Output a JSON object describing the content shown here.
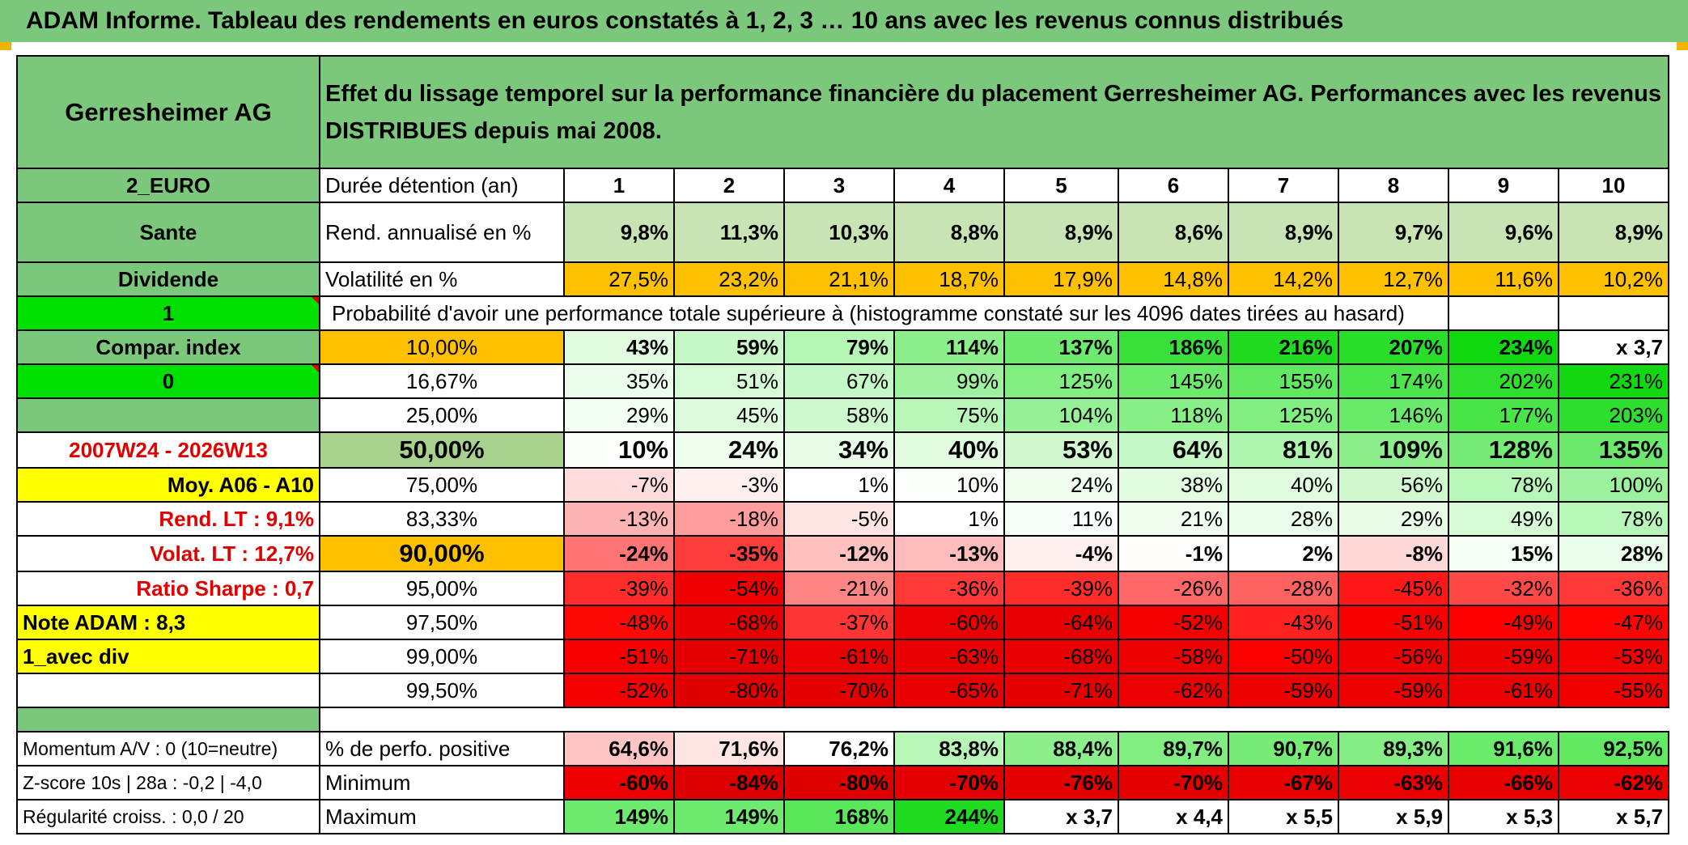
{
  "title": "ADAM Informe. Tableau des rendements en euros constatés à 1, 2, 3 … 10 ans avec les revenus connus distribués",
  "header": {
    "name": "Gerresheimer AG",
    "description": "Effet du lissage temporel sur la performance financière du placement Gerresheimer AG. Performances avec les revenus DISTRIBUES depuis mai 2008."
  },
  "left_column": {
    "currency": "2_EURO",
    "sector": "Sante",
    "dividend": "Dividende",
    "flag1": "1",
    "compar_index": "Compar. index",
    "flag0": "0",
    "period": "2007W24 - 2026W13",
    "moy": "Moy. A06 - A10",
    "rend_lt": "Rend. LT :   9,1%",
    "volat_lt": "Volat. LT :   12,7%",
    "sharpe": "Ratio Sharpe :    0,7",
    "note": "Note ADAM : 8,3",
    "avec_div": "1_avec div"
  },
  "rows": {
    "duration_label": "Durée détention (an)",
    "years": [
      "1",
      "2",
      "3",
      "4",
      "5",
      "6",
      "7",
      "8",
      "9",
      "10"
    ],
    "rend_label": "Rend. annualisé en %",
    "rend": [
      "9,8%",
      "11,3%",
      "10,3%",
      "8,8%",
      "8,9%",
      "8,6%",
      "8,9%",
      "9,7%",
      "9,6%",
      "8,9%"
    ],
    "vol_label": "Volatilité en %",
    "vol": [
      "27,5%",
      "23,2%",
      "21,1%",
      "18,7%",
      "17,9%",
      "14,8%",
      "14,2%",
      "12,7%",
      "11,6%",
      "10,2%"
    ],
    "prob_label": "Probabilité d'avoir une performance totale supérieure à (histogramme constaté sur les 4096 dates tirées au hasard)"
  },
  "quantiles": [
    {
      "label": "10,00%",
      "values": [
        "43%",
        "59%",
        "79%",
        "114%",
        "137%",
        "186%",
        "216%",
        "207%",
        "234%",
        "x 3,7"
      ],
      "colors": [
        "#e0fbe0",
        "#c8f8c8",
        "#b4f6b4",
        "#8cef8c",
        "#6eeb6e",
        "#3ae03a",
        "#20dc20",
        "#28de28",
        "#0fd80f",
        "#ffffff"
      ]
    },
    {
      "label": "16,67%",
      "values": [
        "35%",
        "51%",
        "67%",
        "99%",
        "125%",
        "145%",
        "155%",
        "174%",
        "202%",
        "231%"
      ],
      "colors": [
        "#ecfdec",
        "#d6fad6",
        "#c4f8c4",
        "#9ef29e",
        "#80ee80",
        "#6cea6c",
        "#62e962",
        "#4ce54c",
        "#2edf2e",
        "#12d812"
      ]
    },
    {
      "label": "25,00%",
      "values": [
        "29%",
        "45%",
        "58%",
        "75%",
        "104%",
        "118%",
        "125%",
        "146%",
        "177%",
        "203%"
      ],
      "colors": [
        "#f2fef2",
        "#dcfbdc",
        "#cef9ce",
        "#b8f6b8",
        "#96f196",
        "#88ef88",
        "#80ee80",
        "#6aea6a",
        "#48e448",
        "#2ede2e"
      ]
    },
    {
      "label": "50,00%",
      "values": [
        "10%",
        "24%",
        "34%",
        "40%",
        "53%",
        "64%",
        "81%",
        "109%",
        "128%",
        "135%"
      ],
      "colors": [
        "#fbfffb",
        "#f0fef0",
        "#e8fce8",
        "#e0fbe0",
        "#d0f9d0",
        "#c4f8c4",
        "#aef5ae",
        "#8cef8c",
        "#76ec76",
        "#6ce96c"
      ]
    },
    {
      "label": "75,00%",
      "values": [
        "-7%",
        "-3%",
        "1%",
        "10%",
        "24%",
        "38%",
        "40%",
        "56%",
        "78%",
        "100%"
      ],
      "colors": [
        "#ffdcdc",
        "#fff0f0",
        "#ffffff",
        "#fbfffb",
        "#f0fef0",
        "#e2fce2",
        "#e0fbe0",
        "#d0f9d0",
        "#b6f6b6",
        "#9cf29c"
      ]
    },
    {
      "label": "83,33%",
      "values": [
        "-13%",
        "-18%",
        "-5%",
        "1%",
        "11%",
        "21%",
        "28%",
        "29%",
        "49%",
        "78%"
      ],
      "colors": [
        "#ffb4b4",
        "#ff9c9c",
        "#ffe4e4",
        "#ffffff",
        "#f8fff8",
        "#f0fef0",
        "#eafdea",
        "#e8fce8",
        "#d6fad6",
        "#b6f6b6"
      ]
    },
    {
      "label": "90,00%",
      "values": [
        "-24%",
        "-35%",
        "-12%",
        "-13%",
        "-4%",
        "-1%",
        "2%",
        "-8%",
        "15%",
        "28%"
      ],
      "colors": [
        "#ff7474",
        "#ff3c3c",
        "#ffc0c0",
        "#ffbcbc",
        "#fff0f0",
        "#fffcfc",
        "#ffffff",
        "#ffd8d8",
        "#f4fef4",
        "#eafdea"
      ]
    },
    {
      "label": "95,00%",
      "values": [
        "-39%",
        "-54%",
        "-21%",
        "-36%",
        "-39%",
        "-26%",
        "-28%",
        "-45%",
        "-32%",
        "-36%"
      ],
      "colors": [
        "#ff2c2c",
        "#f00000",
        "#ff8484",
        "#ff3838",
        "#ff2c2c",
        "#ff6868",
        "#ff6060",
        "#ff1818",
        "#ff4848",
        "#ff3838"
      ]
    },
    {
      "label": "97,50%",
      "values": [
        "-48%",
        "-68%",
        "-37%",
        "-60%",
        "-64%",
        "-52%",
        "-43%",
        "-51%",
        "-49%",
        "-47%"
      ],
      "colors": [
        "#ff0808",
        "#e80000",
        "#ff3434",
        "#ea0000",
        "#e80000",
        "#f40000",
        "#ff2020",
        "#f80000",
        "#fc0000",
        "#ff0404"
      ]
    },
    {
      "label": "99,00%",
      "values": [
        "-51%",
        "-71%",
        "-61%",
        "-63%",
        "-68%",
        "-58%",
        "-50%",
        "-56%",
        "-59%",
        "-53%"
      ],
      "colors": [
        "#f80000",
        "#e40000",
        "#ea0000",
        "#e80000",
        "#e80000",
        "#ee0000",
        "#fa0000",
        "#f00000",
        "#ec0000",
        "#f40000"
      ]
    },
    {
      "label": "99,50%",
      "values": [
        "-52%",
        "-80%",
        "-70%",
        "-65%",
        "-71%",
        "-62%",
        "-59%",
        "-59%",
        "-61%",
        "-55%"
      ],
      "colors": [
        "#f40000",
        "#e00000",
        "#e40000",
        "#e80000",
        "#e40000",
        "#ea0000",
        "#ec0000",
        "#ec0000",
        "#ea0000",
        "#f20000"
      ]
    }
  ],
  "bottom": {
    "momentum": "Momentum A/V : 0 (10=neutre)",
    "zscore": "Z-score 10s | 28a : -0,2 | -4,0",
    "regularite": "Régularité croiss. : 0,0 / 20",
    "pos_label": "% de perfo. positive",
    "pos": [
      "64,6%",
      "71,6%",
      "76,2%",
      "83,8%",
      "88,4%",
      "89,7%",
      "90,7%",
      "89,3%",
      "91,6%",
      "92,5%"
    ],
    "pos_colors": [
      "#ffc4c4",
      "#ffe4e4",
      "#ffffff",
      "#b8f6b8",
      "#8cef8c",
      "#80ee80",
      "#76ec76",
      "#84ee84",
      "#6cea6c",
      "#62e962"
    ],
    "min_label": "Minimum",
    "min": [
      "-60%",
      "-84%",
      "-80%",
      "-70%",
      "-76%",
      "-70%",
      "-67%",
      "-63%",
      "-66%",
      "-62%"
    ],
    "max_label": "Maximum",
    "max": [
      "149%",
      "149%",
      "168%",
      "244%",
      "x 3,7",
      "x 4,4",
      "x 5,5",
      "x 5,9",
      "x 5,3",
      "x 5,7"
    ],
    "max_colors": [
      "#6eeb6e",
      "#6eeb6e",
      "#5ae85a",
      "#20dc20",
      "#ffffff",
      "#ffffff",
      "#ffffff",
      "#ffffff",
      "#ffffff",
      "#ffffff"
    ]
  },
  "colors": {
    "header_green": "#7bc87c",
    "bright_green": "#00e000",
    "yellow": "#ffff00",
    "orange": "#ffc000",
    "red_text": "#e00000"
  }
}
